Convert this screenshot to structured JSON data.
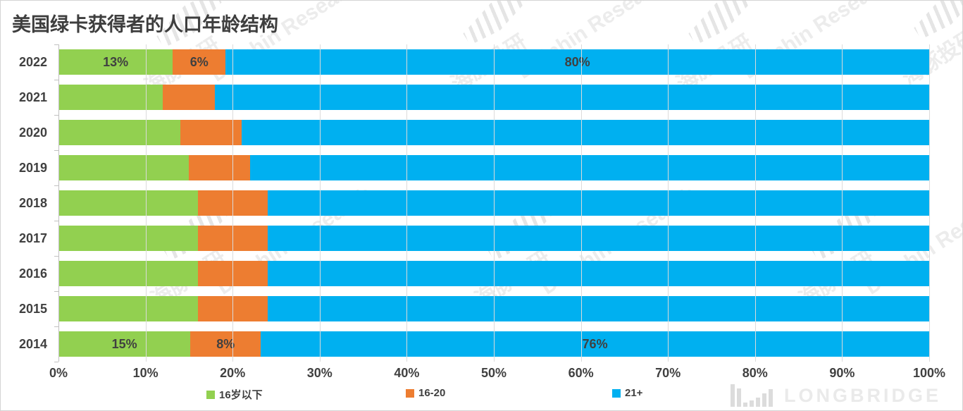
{
  "page_title": "美国绿卡获得者的人口年龄结构",
  "chart_data": {
    "type": "bar",
    "orientation": "horizontal",
    "stacked": true,
    "title": "美国绿卡获得者的人口年龄结构",
    "categories": [
      "2022",
      "2021",
      "2020",
      "2019",
      "2018",
      "2017",
      "2016",
      "2015",
      "2014"
    ],
    "series": [
      {
        "name": "16岁以下",
        "color": "#92D050",
        "values": [
          13,
          12,
          14,
          15,
          16,
          16,
          16,
          16,
          15
        ]
      },
      {
        "name": "16-20",
        "color": "#ED7D31",
        "values": [
          6,
          6,
          7,
          7,
          8,
          8,
          8,
          8,
          8
        ]
      },
      {
        "name": "21+",
        "color": "#00B0F0",
        "values": [
          80,
          82,
          79,
          78,
          76,
          76,
          76,
          76,
          76
        ]
      }
    ],
    "data_labels": {
      "2022": [
        "13%",
        "6%",
        "80%"
      ],
      "2014": [
        "15%",
        "8%",
        "76%"
      ]
    },
    "x_ticks": [
      "0%",
      "10%",
      "20%",
      "30%",
      "40%",
      "50%",
      "60%",
      "70%",
      "80%",
      "90%",
      "100%"
    ],
    "xlim": [
      0,
      100
    ],
    "grid": true,
    "legend": [
      "16岁以下",
      "16-20",
      "21+"
    ],
    "legend_position": "bottom"
  },
  "watermark": {
    "brand_text": "LONGBRIDGE",
    "tile_texts": [
      "海豚投研",
      "Dolphin Research"
    ]
  },
  "colors": {
    "green": "#92D050",
    "orange": "#ED7D31",
    "blue": "#00B0F0",
    "label_text": "#404040",
    "gridline": "#DBDBDB",
    "axis_line": "#C1C1C1",
    "watermark_gray": "#ECECEC"
  }
}
